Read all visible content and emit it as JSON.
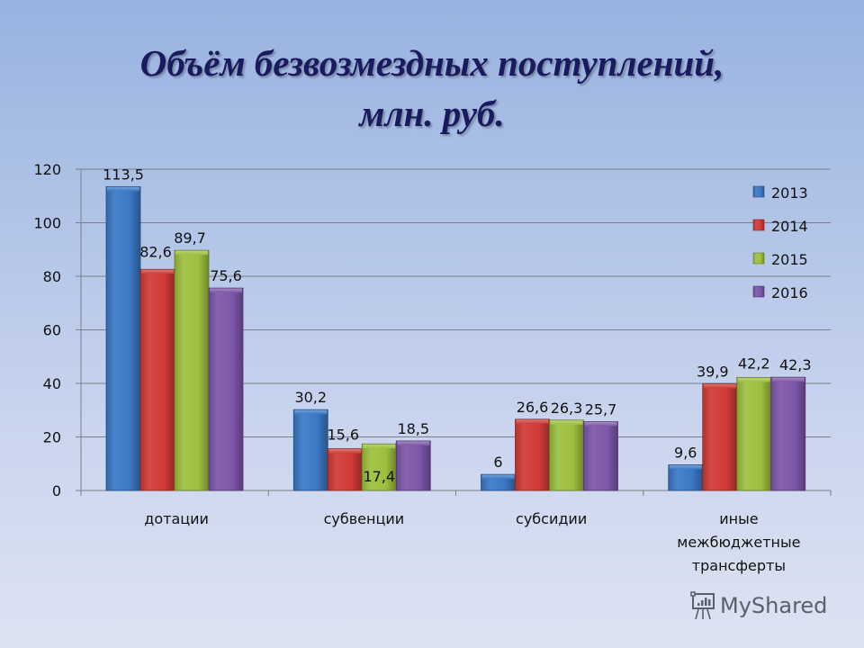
{
  "title": {
    "line1": "Объём безвозмездных поступлений,",
    "line2": "млн. руб."
  },
  "watermark": {
    "text": "MyShared"
  },
  "colors": {
    "2013": "#3a78c4",
    "2014": "#d03a36",
    "2015": "#9cc03e",
    "2016": "#7d56a8",
    "title": "#1a1a5e",
    "grid": "#7a7f88"
  },
  "chart_data": {
    "type": "bar",
    "title": "Объём безвозмездных поступлений, млн. руб.",
    "xlabel": "",
    "ylabel": "",
    "ylim": [
      0,
      120
    ],
    "yticks": [
      0,
      20,
      40,
      60,
      80,
      100,
      120
    ],
    "grid": true,
    "legend_position": "right-top",
    "categories": [
      [
        "дотации"
      ],
      [
        "субвенции"
      ],
      [
        "субсидии"
      ],
      [
        "иные",
        "межбюджетные",
        "трансферты"
      ]
    ],
    "series": [
      {
        "name": "2013",
        "color": "#3a78c4",
        "values": [
          113.5,
          30.2,
          6,
          9.6
        ],
        "labels": [
          "113,5",
          "30,2",
          "6",
          "9,6"
        ]
      },
      {
        "name": "2014",
        "color": "#d03a36",
        "values": [
          82.6,
          15.6,
          26.6,
          39.9
        ],
        "labels": [
          "82,6",
          "15,6",
          "26,6",
          "39,9"
        ]
      },
      {
        "name": "2015",
        "color": "#9cc03e",
        "values": [
          89.7,
          17.4,
          26.3,
          42.2
        ],
        "labels": [
          "89,7",
          "17,4",
          "26,3",
          "42,2"
        ]
      },
      {
        "name": "2016",
        "color": "#7d56a8",
        "values": [
          75.6,
          18.5,
          25.7,
          42.3
        ],
        "labels": [
          "75,6",
          "18,5",
          "25,7",
          "42,3"
        ]
      }
    ]
  }
}
